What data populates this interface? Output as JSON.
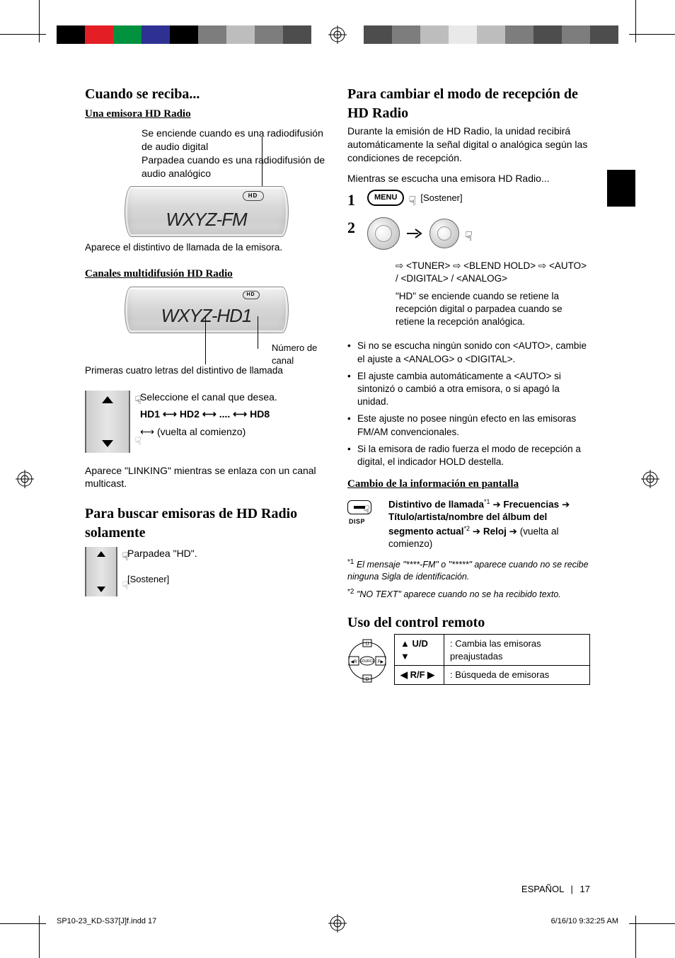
{
  "printer_bars": {
    "left": [
      "#000000",
      "#e31e24",
      "#00923f",
      "#2e3192",
      "#000000",
      "#7d7d7d",
      "#bdbdbd",
      "#7d7d7d",
      "#4d4d4d"
    ],
    "right": [
      "#4d4d4d",
      "#7d7d7d",
      "#bdbdbd",
      "#e9e9e9",
      "#bdbdbd",
      "#7d7d7d",
      "#4d4d4d",
      "#7d7d7d",
      "#4d4d4d"
    ]
  },
  "left": {
    "h1": "Cuando se reciba...",
    "sub1": "Una emisora HD Radio",
    "lead_text": "Se enciende cuando es una radiodifusión de audio digital\nParpadea cuando es una radiodifusión de audio analógico",
    "lcd1": {
      "hd": "HD",
      "text": "WXYZ-FM"
    },
    "caption1": "Aparece el distintivo de llamada de la emisora.",
    "sub2": "Canales multidifusión HD Radio",
    "lcd2": {
      "hd": "HD",
      "text": "WXYZ-HD1"
    },
    "label_channel_no": "Número de canal",
    "caption2": "Primeras cuatro letras del distintivo de llamada",
    "select_channel": "Seleccione el canal que desea.",
    "hd_seq": "HD1 ⟷ HD2 ⟷ .... ⟷ HD8",
    "back_to_start": "⟷ (vuelta al comienzo)",
    "linking": "Aparece \"LINKING\" mientras se enlaza con un canal multicast.",
    "h2": "Para buscar emisoras de HD Radio solamente",
    "flash_hd": "Parpadea \"HD\".",
    "hold": "[Sostener]"
  },
  "right": {
    "h1": "Para cambiar el modo de recepción de HD Radio",
    "intro": "Durante la emisión de HD Radio, la unidad recibirá automáticamente la señal digital o analógica según las condiciones de recepción.",
    "listening": "Mientras se escucha una emisora HD Radio...",
    "menu": "MENU",
    "hold": "[Sostener]",
    "path": "⇨ <TUNER> ⇨ <BLEND HOLD> ⇨ <AUTO> / <DIGITAL> / <ANALOG>",
    "hd_lights": "\"HD\" se enciende cuando se retiene la recepción digital o parpadea cuando se retiene la recepción analógica.",
    "bul1": "Si no se escucha ningún sonido con <AUTO>, cambie el ajuste a <ANALOG> o <DIGITAL>.",
    "bul2": "El ajuste cambia automáticamente a <AUTO> si sintonizó o cambió a otra emisora, o si apagó la unidad.",
    "bul3": "Este ajuste no posee ningún efecto en las emisoras FM/AM convencionales.",
    "bul4": "Si la emisora de radio fuerza el modo de recepción a digital, el indicador HOLD destella.",
    "sub_display": "Cambio de la información en pantalla",
    "disp_label": "DISP",
    "disp_seq_1": "Distintivo de llamada",
    "disp_seq_2": "Frecuencias",
    "disp_seq_3": "Título/artista/nombre del álbum del segmento actual",
    "disp_seq_4": "Reloj",
    "disp_back": "(vuelta al comienzo)",
    "fn1": "El mensaje \"****-FM\" o \"*****\" aparece cuando no se recibe ninguna Sigla de identificación.",
    "fn2": "\"NO TEXT\" aparece cuando no se ha recibido texto.",
    "h_remote": "Uso del control remoto",
    "remote_ud_keys": "▲ U/D ▼",
    "remote_ud": "Cambia las emisoras preajustadas",
    "remote_rf_keys": "◀ R/F ▶",
    "remote_rf": "Búsqueda de emisoras"
  },
  "footer": {
    "lang": "ESPAÑOL",
    "page": "17"
  },
  "print": {
    "file": "SP10-23_KD-S37[J]f.indd   17",
    "date": "6/16/10   9:32:25 AM"
  }
}
